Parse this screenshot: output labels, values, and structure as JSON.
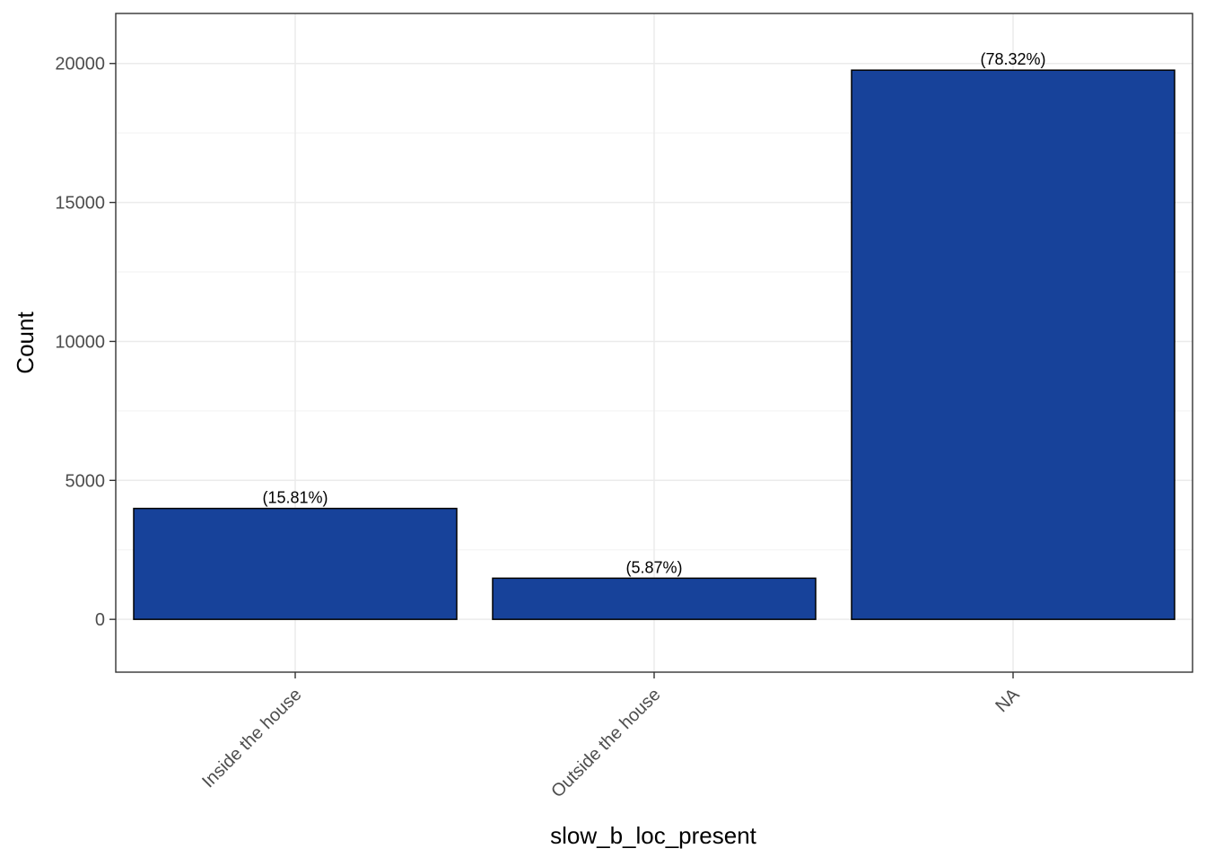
{
  "chart_data": {
    "type": "bar",
    "title": "",
    "xlabel": "slow_b_loc_present",
    "ylabel": "Count",
    "categories": [
      "Inside the house",
      "Outside the house",
      "NA"
    ],
    "values": [
      3990,
      1480,
      19760
    ],
    "bar_labels": [
      "(15.81%)",
      "(5.87%)",
      "(78.32%)"
    ],
    "ylim": [
      -1900,
      21800
    ],
    "yticks": [
      0,
      5000,
      10000,
      15000,
      20000
    ],
    "ytick_labels": [
      "0",
      "5000",
      "10000",
      "15000",
      "20000"
    ],
    "grid": true,
    "legend": "none",
    "bar_fill": "#17429A",
    "bar_stroke": "#000000",
    "grid_major_color": "#EBEBEB",
    "grid_minor_color": "#F2F2F2",
    "tick_label_color": "#4D4D4D",
    "axis_title_color": "#000000"
  }
}
